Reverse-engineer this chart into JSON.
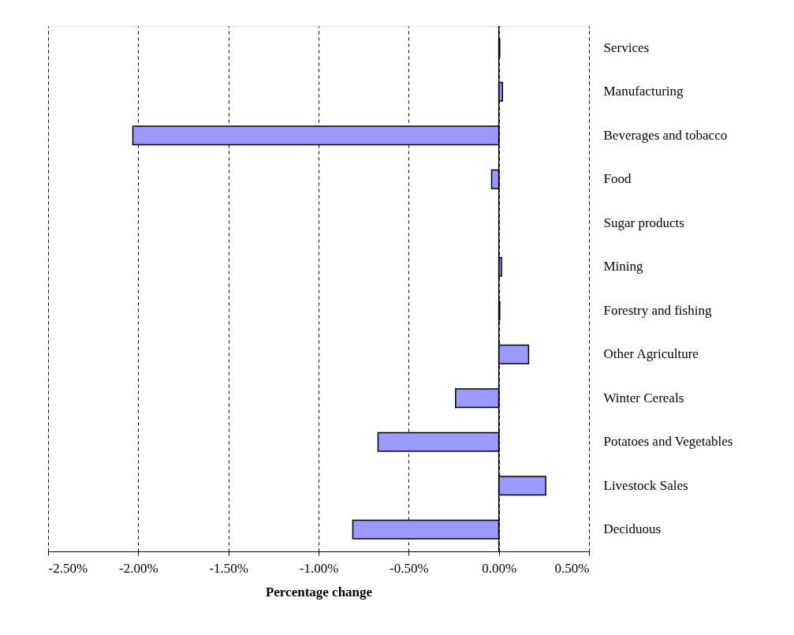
{
  "chart_data": {
    "type": "bar",
    "orientation": "horizontal",
    "xlabel": "Percentage change",
    "categories": [
      "Services",
      "Manufacturing",
      "Beverages and tobacco",
      "Food",
      "Sugar products",
      "Mining",
      "Forestry and fishing",
      "Other Agriculture",
      "Winter Cereals",
      "Potatoes and Vegetables",
      "Livestock Sales",
      "Deciduous"
    ],
    "values": [
      0.005,
      0.02,
      -2.03,
      -0.04,
      0,
      0.015,
      0.005,
      0.165,
      -0.24,
      -0.67,
      0.26,
      -0.81
    ],
    "color": "#9999ff",
    "xlim": [
      -2.5,
      0.5
    ],
    "xticks": [
      {
        "value": -2.5,
        "label": "-2.50%"
      },
      {
        "value": -2.0,
        "label": "-2.00%"
      },
      {
        "value": -1.5,
        "label": "-1.50%"
      },
      {
        "value": -1.0,
        "label": "-1.00%"
      },
      {
        "value": -0.5,
        "label": "-0.50%"
      },
      {
        "value": 0.0,
        "label": "0.00%"
      },
      {
        "value": 0.5,
        "label": "0.50%"
      }
    ],
    "grid": "x",
    "line_style": "dashed"
  }
}
